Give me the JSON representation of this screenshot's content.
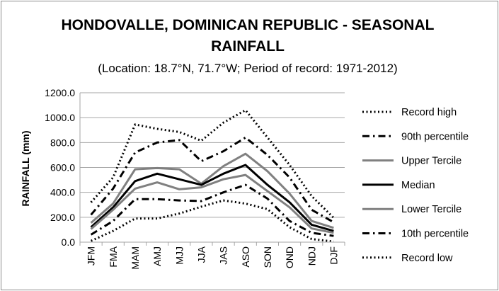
{
  "chart_data": {
    "type": "line",
    "title_line1": "HONDOVALLE, DOMINICAN REPUBLIC - SEASONAL",
    "title_line2": "RAINFALL",
    "subtitle": "(Location: 18.7°N, 71.7°W; Period of record: 1971-2012)",
    "ylabel": "RAINFALL (mm)",
    "xlabel": "",
    "ylim": [
      0,
      1200
    ],
    "yticks": [
      "0.0",
      "200.0",
      "400.0",
      "600.0",
      "800.0",
      "1000.0",
      "1200.0"
    ],
    "ytick_values": [
      0,
      200,
      400,
      600,
      800,
      1000,
      1200
    ],
    "categories": [
      "JFM",
      "FMA",
      "MAM",
      "AMJ",
      "MJJ",
      "JJA",
      "JAS",
      "ASO",
      "SON",
      "OND",
      "NDJ",
      "DJF"
    ],
    "grid": true,
    "legend_position": "right",
    "series": [
      {
        "name": "Record high",
        "values": [
          320,
          520,
          945,
          910,
          885,
          815,
          960,
          1060,
          840,
          620,
          370,
          195
        ],
        "color": "#000000",
        "style": "dotted"
      },
      {
        "name": "90th percentile",
        "values": [
          220,
          430,
          720,
          800,
          820,
          650,
          730,
          840,
          700,
          520,
          260,
          160
        ],
        "color": "#000000",
        "style": "dashdot"
      },
      {
        "name": "Upper Tercile",
        "values": [
          155,
          310,
          585,
          595,
          585,
          470,
          610,
          710,
          570,
          390,
          170,
          115
        ],
        "color": "#808080",
        "style": "solid"
      },
      {
        "name": "Median",
        "values": [
          120,
          280,
          490,
          550,
          505,
          460,
          550,
          620,
          460,
          320,
          140,
          90
        ],
        "color": "#000000",
        "style": "solid"
      },
      {
        "name": "Lower Tercile",
        "values": [
          105,
          260,
          430,
          480,
          425,
          440,
          505,
          540,
          410,
          280,
          110,
          75
        ],
        "color": "#808080",
        "style": "solid"
      },
      {
        "name": "10th percentile",
        "values": [
          60,
          170,
          345,
          345,
          335,
          330,
          400,
          460,
          350,
          170,
          75,
          50
        ],
        "color": "#000000",
        "style": "dashdot"
      },
      {
        "name": "Record low",
        "values": [
          10,
          90,
          190,
          190,
          230,
          285,
          335,
          310,
          265,
          120,
          25,
          5
        ],
        "color": "#000000",
        "style": "dotted"
      }
    ]
  }
}
